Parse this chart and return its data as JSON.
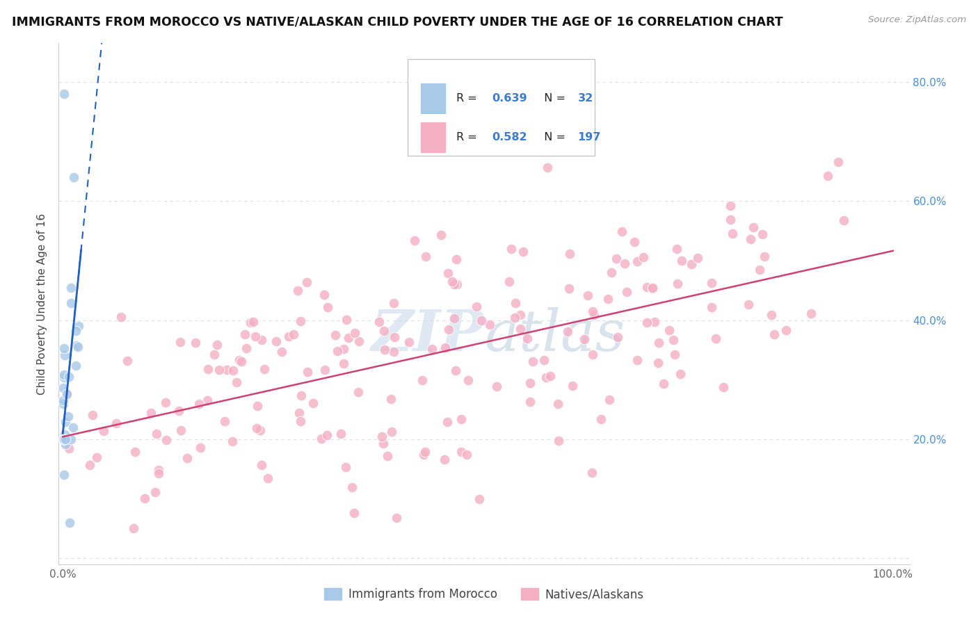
{
  "title": "IMMIGRANTS FROM MOROCCO VS NATIVE/ALASKAN CHILD POVERTY UNDER THE AGE OF 16 CORRELATION CHART",
  "source": "Source: ZipAtlas.com",
  "ylabel": "Child Poverty Under the Age of 16",
  "color_blue": "#a8c8e8",
  "color_pink": "#f4afc4",
  "color_blue_line": "#2060c0",
  "color_pink_line": "#d04070",
  "color_watermark": "#c8d8ea",
  "background_color": "#ffffff",
  "grid_color": "#e0e0e0",
  "x_tick_labels": [
    "0.0%",
    "",
    "",
    "",
    "",
    "",
    "",
    "",
    "",
    "",
    "100.0%"
  ],
  "y_tick_labels_right": [
    "",
    "20.0%",
    "40.0%",
    "60.0%",
    "80.0%"
  ],
  "legend_r1": "0.639",
  "legend_n1": "32",
  "legend_r2": "0.582",
  "legend_n2": "197"
}
